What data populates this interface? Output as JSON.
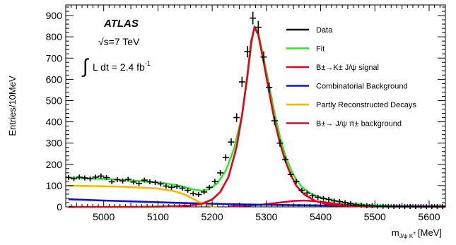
{
  "chart_data": {
    "type": "line",
    "title": "",
    "xlabel": "m",
    "xlabel_sub": "J/ψ K",
    "xlabel_sup": "±",
    "xlabel_unit": "[MeV]",
    "ylabel": "Entries/10MeV",
    "xlim": [
      4930,
      5630
    ],
    "ylim": [
      0,
      950
    ],
    "xticks": [
      5000,
      5100,
      5200,
      5300,
      5400,
      5500,
      5600
    ],
    "yticks": [
      0,
      100,
      200,
      300,
      400,
      500,
      600,
      700,
      800,
      900
    ],
    "annotations": {
      "experiment": "ATLAS",
      "energy": "√s=7 TeV",
      "lumi_integral": "∫",
      "lumi_text": "L dt = 2.4 fb",
      "lumi_sup": "-1"
    },
    "legend": [
      {
        "label": "Data",
        "color": "#000000"
      },
      {
        "label": "Fit",
        "color": "#2ee62e"
      },
      {
        "label": "B±→K± J/ψ signal",
        "color": "#e6001a"
      },
      {
        "label": "Combinatorial Background",
        "color": "#0a14d6"
      },
      {
        "label": "Partly Reconstructed Decays",
        "color": "#f5b800"
      },
      {
        "label": "B±→ J/ψ π± background",
        "color": "#e8002a"
      }
    ],
    "series": [
      {
        "name": "Data",
        "style": "points",
        "color": "#000000",
        "x": [
          4935,
          4945,
          4955,
          4965,
          4975,
          4985,
          4995,
          5005,
          5015,
          5025,
          5035,
          5045,
          5055,
          5065,
          5075,
          5085,
          5095,
          5105,
          5115,
          5125,
          5135,
          5145,
          5155,
          5165,
          5175,
          5185,
          5195,
          5205,
          5215,
          5225,
          5235,
          5245,
          5255,
          5265,
          5275,
          5285,
          5295,
          5305,
          5315,
          5325,
          5335,
          5345,
          5355,
          5365,
          5375,
          5385,
          5395,
          5405,
          5415,
          5425,
          5435,
          5445,
          5455,
          5465,
          5475,
          5485,
          5495,
          5505,
          5515,
          5525,
          5535,
          5545,
          5555,
          5565,
          5575,
          5585,
          5595,
          5605,
          5615,
          5625
        ],
        "y": [
          138,
          132,
          140,
          136,
          132,
          140,
          145,
          138,
          118,
          128,
          122,
          130,
          117,
          110,
          126,
          118,
          115,
          108,
          98,
          92,
          95,
          88,
          78,
          62,
          58,
          70,
          92,
          120,
          160,
          232,
          305,
          420,
          588,
          730,
          888,
          845,
          705,
          562,
          405,
          300,
          222,
          152,
          120,
          78,
          65,
          52,
          45,
          40,
          35,
          28,
          25,
          20,
          15,
          10,
          8,
          5,
          5,
          3,
          3,
          2,
          2,
          2,
          1,
          2,
          1,
          1,
          1,
          1,
          1,
          1
        ]
      },
      {
        "name": "Fit",
        "style": "line",
        "color": "#2ee62e",
        "x": [
          4935,
          4955,
          4975,
          4995,
          5015,
          5035,
          5055,
          5075,
          5095,
          5115,
          5135,
          5150,
          5165,
          5180,
          5195,
          5210,
          5225,
          5240,
          5255,
          5265,
          5272,
          5278,
          5285,
          5295,
          5305,
          5315,
          5325,
          5335,
          5345,
          5355,
          5365,
          5380,
          5395,
          5410,
          5430,
          5450,
          5475,
          5500,
          5530,
          5560,
          5600,
          5630
        ],
        "y": [
          138,
          136,
          134,
          132,
          130,
          127,
          123,
          120,
          116,
          110,
          102,
          93,
          82,
          76,
          84,
          112,
          170,
          270,
          430,
          610,
          760,
          850,
          820,
          700,
          570,
          440,
          330,
          240,
          175,
          128,
          95,
          65,
          48,
          38,
          27,
          18,
          12,
          7,
          4,
          2,
          1,
          1
        ]
      },
      {
        "name": "B±→K± J/ψ signal",
        "style": "line",
        "color": "#e6001a",
        "x": [
          4935,
          5000,
          5050,
          5100,
          5130,
          5160,
          5180,
          5200,
          5215,
          5230,
          5245,
          5255,
          5265,
          5272,
          5278,
          5285,
          5295,
          5305,
          5315,
          5325,
          5335,
          5345,
          5355,
          5370,
          5390,
          5410,
          5440,
          5480,
          5530,
          5630
        ],
        "y": [
          0,
          0,
          0,
          1,
          3,
          7,
          14,
          35,
          70,
          140,
          280,
          430,
          620,
          780,
          845,
          810,
          680,
          540,
          405,
          300,
          215,
          150,
          100,
          58,
          28,
          14,
          5,
          2,
          1,
          0
        ]
      },
      {
        "name": "Combinatorial Background",
        "style": "line",
        "color": "#0a14d6",
        "x": [
          4935,
          5000,
          5050,
          5100,
          5150,
          5200,
          5250,
          5300,
          5350,
          5400,
          5450,
          5500,
          5550,
          5600,
          5630
        ],
        "y": [
          36,
          30,
          26,
          22,
          18,
          15,
          12,
          10,
          8,
          7,
          6,
          5,
          4,
          3,
          3
        ]
      },
      {
        "name": "Partly Reconstructed Decays",
        "style": "line",
        "color": "#f5b800",
        "x": [
          4935,
          4980,
          5020,
          5060,
          5100,
          5130,
          5150,
          5165,
          5180,
          5190,
          5200,
          5210
        ],
        "y": [
          100,
          98,
          96,
          92,
          86,
          74,
          58,
          38,
          18,
          8,
          2,
          0
        ]
      },
      {
        "name": "B±→ J/ψ π± background",
        "style": "line",
        "color": "#e8002a",
        "x": [
          5230,
          5260,
          5290,
          5310,
          5330,
          5350,
          5370,
          5390,
          5410,
          5430,
          5450,
          5470,
          5500
        ],
        "y": [
          2,
          5,
          10,
          16,
          22,
          28,
          30,
          27,
          21,
          14,
          8,
          4,
          1
        ]
      }
    ]
  }
}
